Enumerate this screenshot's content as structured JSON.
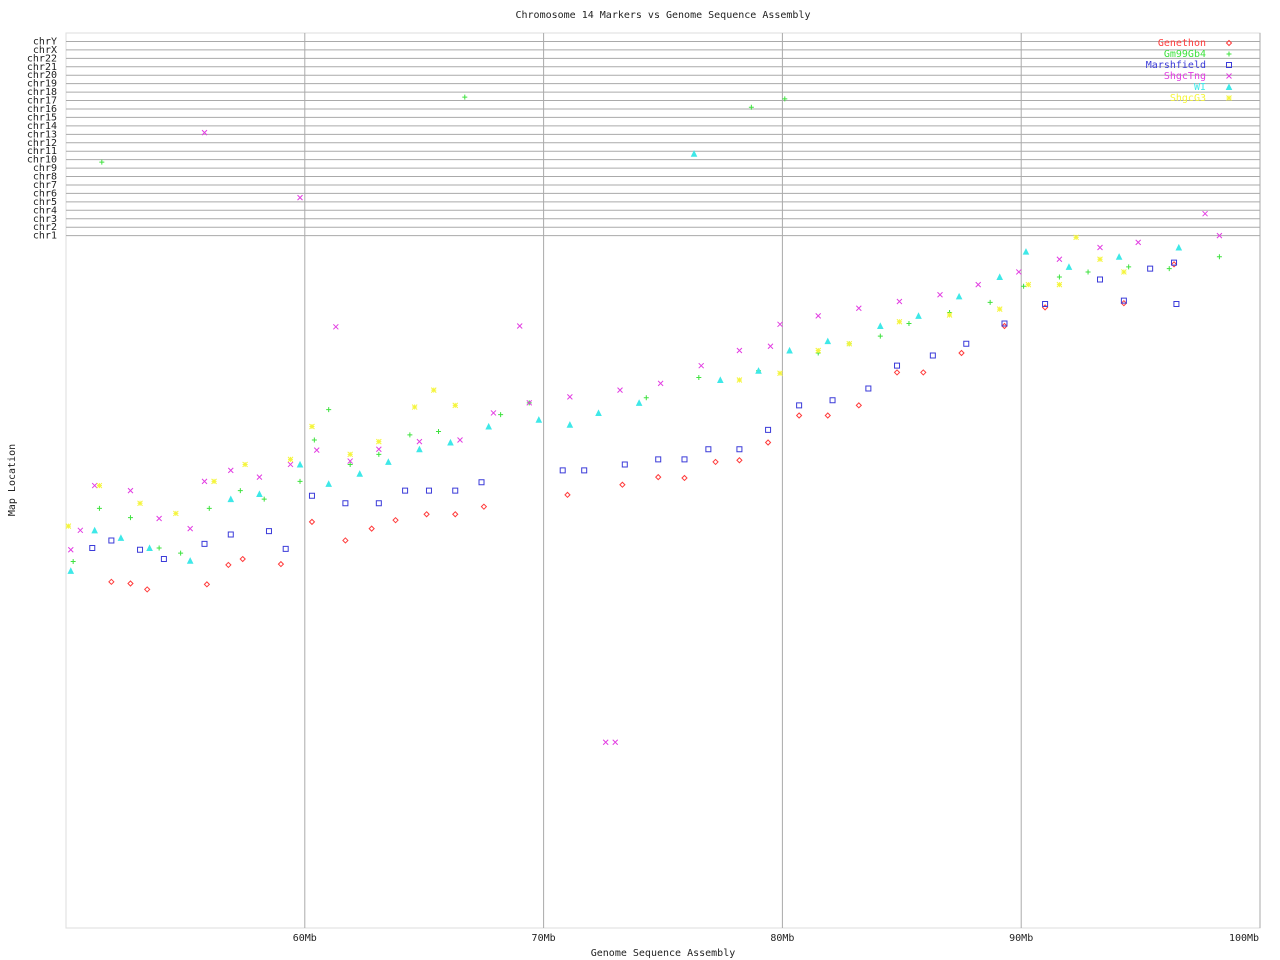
{
  "chart_data": {
    "type": "scatter",
    "title": "Chromosome 14 Markers vs Genome Sequence Assembly",
    "x_label": "Genome Sequence Assembly",
    "y_label": "Map Location",
    "xlim": [
      50,
      100
    ],
    "xticks": [
      {
        "value": 60,
        "label": "60Mb"
      },
      {
        "value": 70,
        "label": "70Mb"
      },
      {
        "value": 80,
        "label": "80Mb"
      },
      {
        "value": 90,
        "label": "90Mb"
      },
      {
        "value": 100,
        "label": "100Mb"
      }
    ],
    "ylim": [
      0,
      106
    ],
    "yticks": [
      {
        "value": 82,
        "label": "chr1"
      },
      {
        "value": 83,
        "label": "chr2"
      },
      {
        "value": 84,
        "label": "chr3"
      },
      {
        "value": 85,
        "label": "chr4"
      },
      {
        "value": 86,
        "label": "chr5"
      },
      {
        "value": 87,
        "label": "chr6"
      },
      {
        "value": 88,
        "label": "chr7"
      },
      {
        "value": 89,
        "label": "chr8"
      },
      {
        "value": 90,
        "label": "chr9"
      },
      {
        "value": 91,
        "label": "chr10"
      },
      {
        "value": 92,
        "label": "chr11"
      },
      {
        "value": 93,
        "label": "chr12"
      },
      {
        "value": 94,
        "label": "chr13"
      },
      {
        "value": 95,
        "label": "chr14"
      },
      {
        "value": 96,
        "label": "chr15"
      },
      {
        "value": 97,
        "label": "chr16"
      },
      {
        "value": 98,
        "label": "chr17"
      },
      {
        "value": 99,
        "label": "chr18"
      },
      {
        "value": 100,
        "label": "chr19"
      },
      {
        "value": 101,
        "label": "chr20"
      },
      {
        "value": 102,
        "label": "chr21"
      },
      {
        "value": 103,
        "label": "chr22"
      },
      {
        "value": 104,
        "label": "chrX"
      },
      {
        "value": 105,
        "label": "chrY"
      }
    ],
    "grid": true,
    "legend": "top-right",
    "series": [
      {
        "name": "Genethon",
        "color": "#ff3b3b",
        "marker": "diamond",
        "x": [
          51.9,
          52.7,
          53.4,
          55.9,
          56.8,
          57.4,
          59.0,
          60.3,
          61.7,
          62.8,
          63.8,
          65.1,
          66.3,
          67.5,
          71.0,
          73.3,
          74.8,
          75.9,
          77.2,
          78.2,
          79.4,
          80.7,
          81.9,
          83.2,
          84.8,
          85.9,
          87.5,
          89.3,
          91.0,
          94.3,
          96.4
        ],
        "values": [
          41.0,
          40.8,
          40.1,
          40.7,
          43.0,
          43.7,
          43.1,
          48.1,
          45.9,
          47.3,
          48.3,
          49.0,
          49.0,
          49.9,
          51.3,
          52.5,
          53.4,
          53.3,
          55.2,
          55.4,
          57.5,
          60.7,
          60.7,
          61.9,
          65.8,
          65.8,
          68.1,
          71.3,
          73.5,
          74.0,
          78.6
        ]
      },
      {
        "name": "Gm99Gb4",
        "color": "#3ee23e",
        "marker": "plus",
        "x": [
          50.3,
          51.4,
          52.7,
          53.9,
          54.8,
          56.0,
          57.3,
          58.3,
          59.8,
          60.4,
          61.0,
          61.9,
          63.1,
          64.4,
          65.6,
          51.5,
          66.7,
          68.2,
          69.4,
          74.3,
          76.5,
          78.7,
          80.1,
          79.0,
          81.5,
          82.8,
          84.1,
          85.3,
          87.0,
          88.7,
          90.1,
          91.6,
          92.8,
          94.5,
          96.2,
          98.3
        ],
        "values": [
          43.4,
          49.7,
          48.6,
          45.0,
          44.4,
          49.7,
          51.8,
          50.8,
          52.9,
          57.8,
          61.4,
          54.9,
          56.1,
          58.4,
          58.8,
          90.7,
          98.4,
          60.8,
          62.2,
          62.8,
          65.2,
          97.2,
          98.2,
          66.0,
          68.1,
          69.2,
          70.1,
          71.6,
          72.9,
          74.1,
          76.0,
          77.1,
          77.7,
          78.3,
          78.1,
          79.5
        ]
      },
      {
        "name": "Marshfield",
        "color": "#3b3bd9",
        "marker": "square",
        "x": [
          51.1,
          51.9,
          53.1,
          54.1,
          55.8,
          56.9,
          58.5,
          59.2,
          60.3,
          61.7,
          63.1,
          64.2,
          65.2,
          66.3,
          67.4,
          70.8,
          71.7,
          73.4,
          74.8,
          75.9,
          76.9,
          78.2,
          79.4,
          80.7,
          82.1,
          83.6,
          84.8,
          86.3,
          87.7,
          89.3,
          91.0,
          93.3,
          94.3,
          95.4,
          96.4,
          96.5
        ],
        "values": [
          45.0,
          45.9,
          44.8,
          43.7,
          45.5,
          46.6,
          47.0,
          44.9,
          51.2,
          50.3,
          50.3,
          51.8,
          51.8,
          51.8,
          52.8,
          54.2,
          54.2,
          54.9,
          55.5,
          55.5,
          56.7,
          56.7,
          59.0,
          61.9,
          62.5,
          63.9,
          66.6,
          67.8,
          69.2,
          71.6,
          73.9,
          76.8,
          74.3,
          78.1,
          78.8,
          73.9
        ]
      },
      {
        "name": "ShgcTng",
        "color": "#e23ee2",
        "marker": "cross",
        "x": [
          50.2,
          50.6,
          51.2,
          52.7,
          53.9,
          55.2,
          55.8,
          56.9,
          58.1,
          59.4,
          55.8,
          59.8,
          61.3,
          60.5,
          61.9,
          63.1,
          64.8,
          66.5,
          67.9,
          69.0,
          69.4,
          71.1,
          72.6,
          73.0,
          73.2,
          74.9,
          76.6,
          78.2,
          79.5,
          79.9,
          81.5,
          83.2,
          84.9,
          86.6,
          88.2,
          89.9,
          91.6,
          93.3,
          94.9,
          97.7,
          98.3
        ],
        "values": [
          44.8,
          47.1,
          52.4,
          51.8,
          48.5,
          47.3,
          52.9,
          54.2,
          53.4,
          54.9,
          94.2,
          86.5,
          71.2,
          56.6,
          55.3,
          56.7,
          57.6,
          57.8,
          61.0,
          71.3,
          62.2,
          62.9,
          22.0,
          22.0,
          63.7,
          64.5,
          66.6,
          68.4,
          68.9,
          71.5,
          72.5,
          73.4,
          74.2,
          75.0,
          76.2,
          77.7,
          79.2,
          80.6,
          81.2,
          84.6,
          82.0
        ]
      },
      {
        "name": "WI",
        "color": "#3ee8e8",
        "marker": "triangle",
        "x": [
          50.2,
          51.2,
          52.3,
          53.5,
          55.2,
          56.9,
          58.1,
          59.8,
          61.0,
          62.3,
          63.5,
          64.8,
          66.1,
          67.7,
          69.8,
          71.1,
          72.3,
          74.0,
          76.3,
          77.4,
          79.0,
          80.3,
          81.9,
          84.1,
          85.7,
          87.4,
          89.1,
          90.2,
          92.0,
          94.1,
          96.6
        ],
        "values": [
          42.3,
          47.1,
          46.2,
          45.0,
          43.5,
          50.8,
          51.4,
          54.9,
          52.6,
          53.8,
          55.2,
          56.7,
          57.5,
          59.4,
          60.2,
          59.6,
          61.0,
          62.2,
          91.7,
          64.9,
          66.0,
          68.4,
          69.5,
          71.3,
          72.5,
          74.8,
          77.1,
          80.1,
          78.3,
          79.5,
          80.6
        ]
      },
      {
        "name": "ShgcG3",
        "color": "#f5f53b",
        "marker": "star",
        "x": [
          50.1,
          51.4,
          53.1,
          54.6,
          56.2,
          57.5,
          59.4,
          60.3,
          61.9,
          63.1,
          64.6,
          65.4,
          66.3,
          78.2,
          79.9,
          81.5,
          82.8,
          84.9,
          87.0,
          89.1,
          90.3,
          91.6,
          92.3,
          93.3,
          94.3
        ],
        "values": [
          47.6,
          52.4,
          50.3,
          49.1,
          52.9,
          54.9,
          55.5,
          59.4,
          56.1,
          57.6,
          61.7,
          63.7,
          61.9,
          64.9,
          65.7,
          68.4,
          69.2,
          71.8,
          72.6,
          73.3,
          76.2,
          76.2,
          81.8,
          79.2,
          77.7
        ]
      }
    ]
  }
}
